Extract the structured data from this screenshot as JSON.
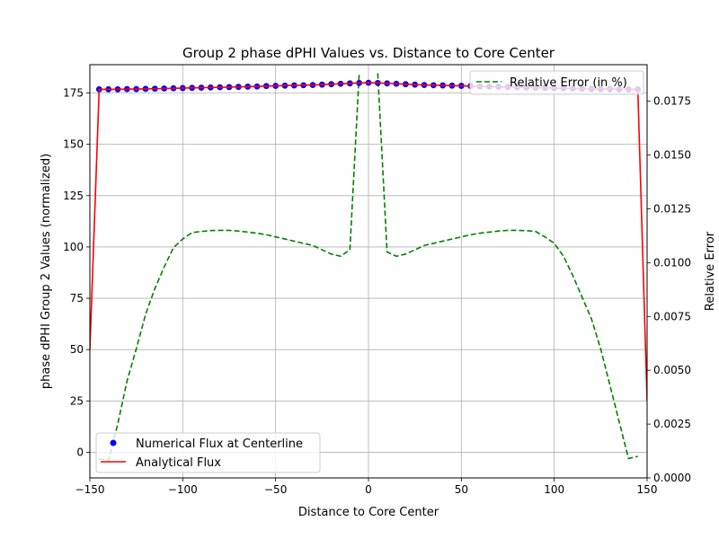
{
  "chart_data": {
    "type": "line",
    "title": "Group 2 phase dPHI Values vs. Distance to Core Center",
    "xlabel": "Distance to Core Center",
    "ylabel": "phase dPHI Group 2 Values (normalized)",
    "y2label": "Relative Error",
    "xlim": [
      -150,
      150
    ],
    "ylim": [
      -12.5,
      188.8
    ],
    "y2lim": [
      0.0,
      0.0192
    ],
    "xticks": [
      -150,
      -100,
      -50,
      0,
      50,
      100,
      150
    ],
    "yticks": [
      0,
      25,
      50,
      75,
      100,
      125,
      150,
      175
    ],
    "y2ticks": [
      0.0,
      0.0025,
      0.005,
      0.0075,
      0.01,
      0.0125,
      0.015,
      0.0175
    ],
    "y2ticklabels": [
      "0.0000",
      "0.0025",
      "0.0050",
      "0.0075",
      "0.0100",
      "0.0125",
      "0.0150",
      "0.0175"
    ],
    "grid": true,
    "series": [
      {
        "name": "Numerical Flux at Centerline",
        "style": "markers",
        "color": "#0000ff",
        "axis": "left",
        "x": [
          -145,
          -140,
          -135,
          -130,
          -125,
          -120,
          -115,
          -110,
          -105,
          -100,
          -95,
          -90,
          -85,
          -80,
          -75,
          -70,
          -65,
          -60,
          -55,
          -50,
          -45,
          -40,
          -35,
          -30,
          -25,
          -20,
          -15,
          -10,
          -5,
          0,
          5,
          10,
          15,
          20,
          25,
          30,
          35,
          40,
          45,
          50,
          55,
          60,
          65,
          70,
          75,
          80,
          85,
          90,
          95,
          100,
          105,
          110,
          115,
          120,
          125,
          130,
          135,
          140,
          145
        ],
        "y": [
          176.8,
          176.8,
          176.8,
          176.9,
          176.9,
          177.0,
          177.1,
          177.2,
          177.3,
          177.4,
          177.5,
          177.6,
          177.7,
          177.8,
          177.9,
          178.0,
          178.1,
          178.2,
          178.4,
          178.5,
          178.6,
          178.7,
          178.8,
          178.9,
          179.1,
          179.3,
          179.5,
          179.7,
          179.9,
          180.0,
          179.9,
          179.7,
          179.5,
          179.3,
          179.1,
          178.9,
          178.8,
          178.7,
          178.6,
          178.5,
          178.4,
          178.2,
          178.1,
          178.0,
          177.9,
          177.8,
          177.7,
          177.6,
          177.5,
          177.4,
          177.3,
          177.2,
          177.1,
          177.0,
          176.9,
          176.9,
          176.8,
          176.8,
          176.8
        ]
      },
      {
        "name": "Analytical Flux",
        "style": "line",
        "color": "#ff0000",
        "axis": "left",
        "x": [
          -150,
          -145,
          -140,
          -135,
          -130,
          -125,
          -120,
          -115,
          -110,
          -105,
          -100,
          -95,
          -90,
          -85,
          -80,
          -75,
          -70,
          -65,
          -60,
          -55,
          -50,
          -45,
          -40,
          -35,
          -30,
          -25,
          -20,
          -15,
          -10,
          -5,
          0,
          5,
          10,
          15,
          20,
          25,
          30,
          35,
          40,
          45,
          50,
          55,
          60,
          65,
          70,
          75,
          80,
          85,
          90,
          95,
          100,
          105,
          110,
          115,
          120,
          125,
          130,
          135,
          140,
          145,
          150
        ],
        "y": [
          50,
          176.8,
          176.8,
          176.8,
          176.9,
          176.9,
          177.0,
          177.1,
          177.2,
          177.3,
          177.4,
          177.5,
          177.6,
          177.7,
          177.8,
          177.9,
          178.0,
          178.1,
          178.2,
          178.4,
          178.5,
          178.6,
          178.7,
          178.8,
          178.9,
          179.1,
          179.3,
          179.5,
          179.7,
          179.9,
          180.0,
          179.9,
          179.7,
          179.5,
          179.3,
          179.1,
          178.9,
          178.8,
          178.7,
          178.6,
          178.5,
          178.4,
          178.2,
          178.1,
          178.0,
          177.9,
          177.8,
          177.7,
          177.6,
          177.5,
          177.4,
          177.3,
          177.2,
          177.1,
          177.0,
          176.9,
          176.9,
          176.8,
          176.8,
          176.8,
          25
        ]
      },
      {
        "name": "Relative Error (in %)",
        "style": "dashed",
        "color": "#008000",
        "axis": "right",
        "x": [
          -145,
          -140,
          -135,
          -130,
          -125,
          -120,
          -115,
          -110,
          -105,
          -100,
          -95,
          -90,
          -85,
          -80,
          -75,
          -70,
          -65,
          -60,
          -55,
          -50,
          -45,
          -40,
          -35,
          -30,
          -25,
          -20,
          -15,
          -10,
          -5,
          0,
          5,
          10,
          15,
          20,
          25,
          30,
          35,
          40,
          45,
          50,
          55,
          60,
          65,
          70,
          75,
          80,
          85,
          90,
          95,
          100,
          105,
          110,
          115,
          120,
          125,
          130,
          135,
          140,
          145
        ],
        "y": [
          0.0009,
          0.0008,
          0.0025,
          0.0045,
          0.006,
          0.0076,
          0.0088,
          0.0098,
          0.0107,
          0.0111,
          0.0114,
          0.01145,
          0.01149,
          0.0115,
          0.0115,
          0.01147,
          0.01142,
          0.01137,
          0.0113,
          0.0112,
          0.0111,
          0.011,
          0.0109,
          0.0108,
          0.0106,
          0.0104,
          0.0103,
          0.0106,
          0.0188,
          null,
          0.0188,
          0.0105,
          0.0103,
          0.0104,
          0.0106,
          0.0108,
          0.0109,
          0.011,
          0.0111,
          0.0112,
          0.0113,
          0.01137,
          0.01142,
          0.01147,
          0.0115,
          0.0115,
          0.01149,
          0.01145,
          0.0112,
          0.0109,
          0.0103,
          0.0094,
          0.0084,
          0.0074,
          0.006,
          0.0043,
          0.0026,
          0.0009,
          0.001
        ]
      }
    ],
    "legends": [
      {
        "position": "lower-left",
        "entries": [
          "Numerical Flux at Centerline",
          "Analytical Flux"
        ]
      },
      {
        "position": "upper-right",
        "entries": [
          "Relative Error (in %)"
        ]
      }
    ]
  }
}
